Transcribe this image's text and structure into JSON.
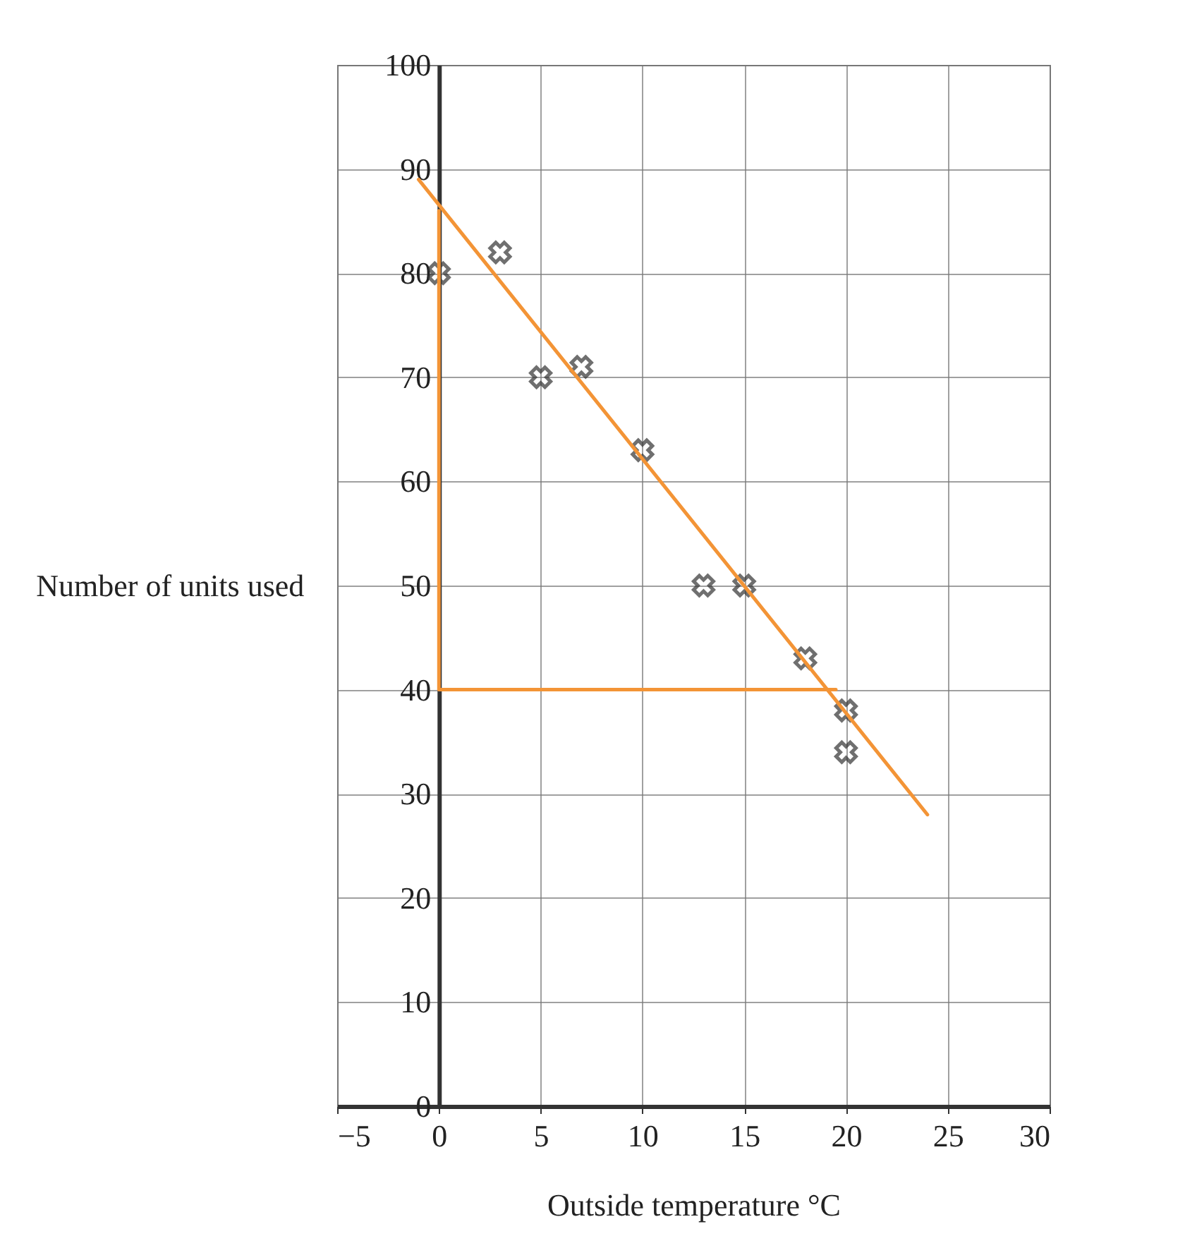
{
  "chart_data": {
    "type": "scatter",
    "xlabel": "Outside temperature °C",
    "ylabel": "Number of units used",
    "xlim": [
      -5,
      30
    ],
    "xticks": [
      -5,
      0,
      5,
      10,
      15,
      20,
      25,
      30
    ],
    "ylim": [
      0,
      100
    ],
    "yticks": [
      0,
      10,
      20,
      30,
      40,
      50,
      60,
      70,
      80,
      90,
      100
    ],
    "grid": true,
    "series": [
      {
        "color": "#333333",
        "marker": "cross",
        "x": [
          0,
          3,
          5,
          7,
          10,
          13,
          15,
          18,
          20,
          20
        ],
        "values": [
          80,
          82,
          70,
          71,
          63,
          50,
          50,
          43,
          38,
          34
        ]
      },
      {
        "type": "line",
        "color": "#f39436",
        "line_style": "solid",
        "x": [
          -1,
          24
        ],
        "values": [
          89,
          28
        ]
      },
      {
        "type": "line",
        "color": "#f39436",
        "line_style": "solid",
        "x": [
          0,
          0,
          19.5
        ],
        "values": [
          86,
          40,
          40
        ]
      }
    ]
  }
}
